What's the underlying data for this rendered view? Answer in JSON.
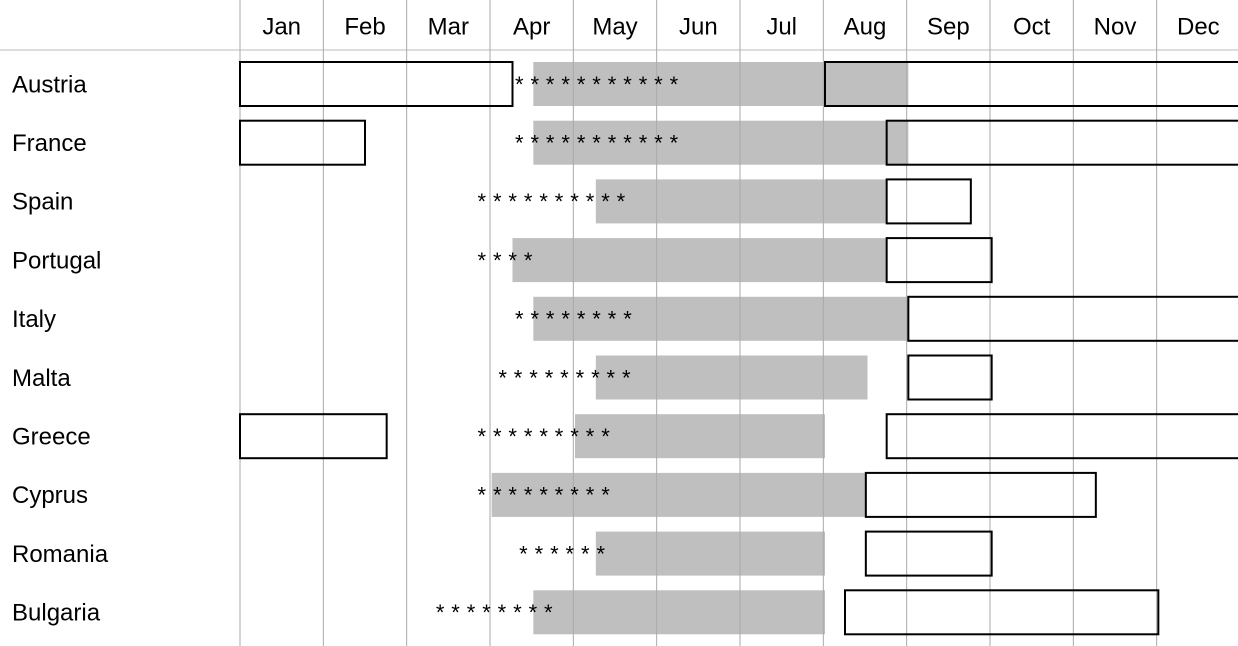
{
  "chart_data": {
    "type": "gantt",
    "months": [
      "Jan",
      "Feb",
      "Mar",
      "Apr",
      "May",
      "Jun",
      "Jul",
      "Aug",
      "Sep",
      "Oct",
      "Nov",
      "Dec"
    ],
    "xlim": [
      0,
      12
    ],
    "gray_color": "#bfbfbf",
    "rows": [
      {
        "name": "Austria",
        "boxes": [
          [
            0,
            3.27
          ],
          [
            7.02,
            12
          ]
        ],
        "gray": [
          3.52,
          8.02
        ],
        "stars": "***********",
        "stars_start": 3.3
      },
      {
        "name": "France",
        "boxes": [
          [
            0,
            1.5
          ],
          [
            7.76,
            12
          ]
        ],
        "gray": [
          3.52,
          8.02
        ],
        "stars": "***********",
        "stars_start": 3.3
      },
      {
        "name": "Spain",
        "boxes": [
          [
            7.76,
            8.77
          ]
        ],
        "gray": [
          4.27,
          7.76
        ],
        "stars": "**********",
        "stars_start": 2.85
      },
      {
        "name": "Portugal",
        "boxes": [
          [
            7.76,
            9.02
          ]
        ],
        "gray": [
          3.27,
          7.76
        ],
        "stars": "****",
        "stars_start": 2.85
      },
      {
        "name": "Italy",
        "boxes": [
          [
            8.02,
            12
          ]
        ],
        "gray": [
          3.52,
          8.02
        ],
        "stars": "********",
        "stars_start": 3.3
      },
      {
        "name": "Malta",
        "boxes": [
          [
            8.02,
            9.02
          ]
        ],
        "gray": [
          4.27,
          7.53
        ],
        "stars": "*********",
        "stars_start": 3.1
      },
      {
        "name": "Greece",
        "boxes": [
          [
            0,
            1.76
          ],
          [
            7.76,
            12
          ]
        ],
        "gray": [
          4.02,
          7.02
        ],
        "stars": "*********",
        "stars_start": 2.85
      },
      {
        "name": "Cyprus",
        "boxes": [
          [
            7.51,
            10.27
          ]
        ],
        "gray": [
          3.02,
          7.51
        ],
        "stars": "*********",
        "stars_start": 2.85
      },
      {
        "name": "Romania",
        "boxes": [
          [
            7.51,
            9.02
          ]
        ],
        "gray": [
          4.27,
          7.02
        ],
        "stars": "******",
        "stars_start": 3.35
      },
      {
        "name": "Bulgaria",
        "boxes": [
          [
            7.26,
            11.02
          ]
        ],
        "gray": [
          3.52,
          7.02
        ],
        "stars": "********",
        "stars_start": 2.35
      }
    ]
  }
}
